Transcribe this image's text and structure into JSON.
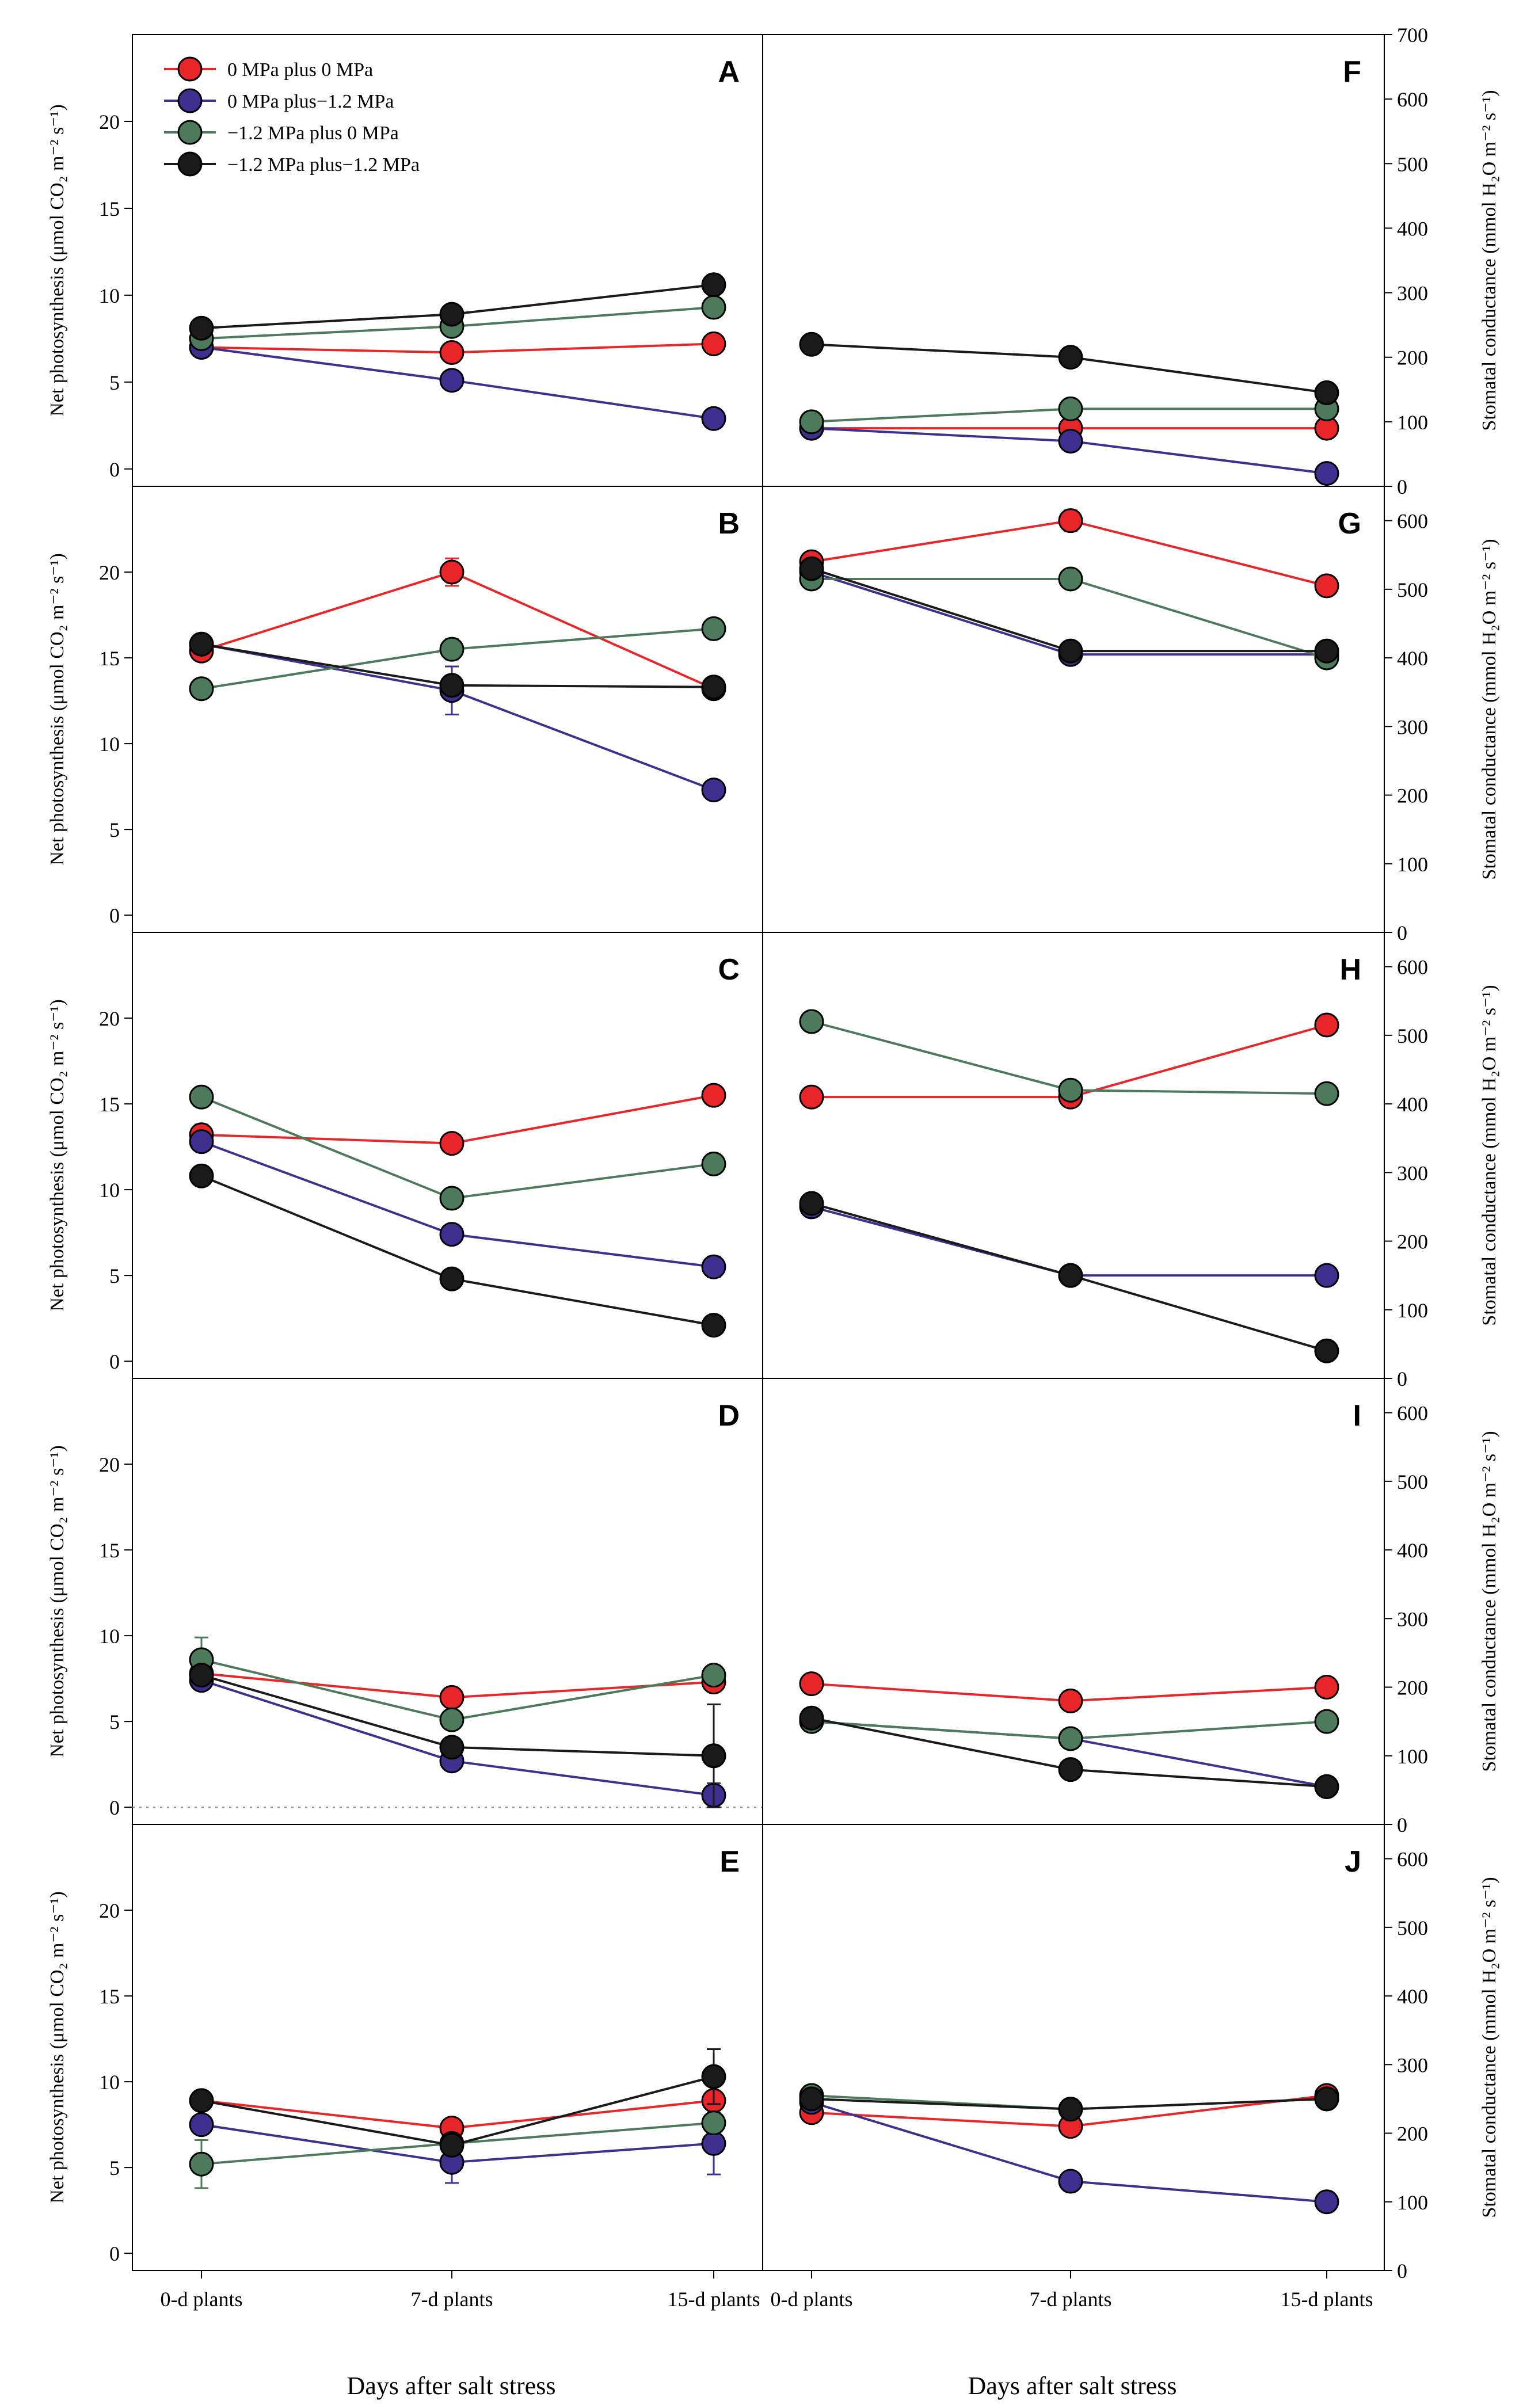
{
  "figure": {
    "x_axis_title": "Days after salt stress",
    "left_y_axis_title": "Net photosynthesis (μmol CO₂ m⁻² s⁻¹)",
    "right_y_axis_title": "Stomatal conductance (mmol H₂O m⁻² s⁻¹)",
    "x_tick_labels": [
      "0-d plants",
      "7-d plants",
      "15-d plants"
    ]
  },
  "legend": {
    "items": [
      {
        "label": "0 MPa plus 0 MPa",
        "color": "#e8262a"
      },
      {
        "label": "0 MPa plus−1.2 MPa",
        "color": "#3f2f8f"
      },
      {
        "label": "−1.2 MPa plus 0 MPa",
        "color": "#4c7a5a"
      },
      {
        "label": "−1.2 MPa plus−1.2  MPa",
        "color": "#1a1a1a"
      }
    ]
  },
  "chart_data": [
    {
      "panel": "A",
      "type": "line",
      "ylabel": "Net photosynthesis (μmol CO₂ m⁻² s⁻¹)",
      "ylim": [
        -1,
        25
      ],
      "yticks": [
        0,
        5,
        10,
        15,
        20
      ],
      "categories": [
        "0-d plants",
        "7-d plants",
        "15-d plants"
      ],
      "series": [
        {
          "name": "0 MPa plus 0 MPa",
          "values": [
            7.0,
            6.7,
            7.2
          ],
          "errors": [
            0.2,
            0.2,
            0.2
          ]
        },
        {
          "name": "0 MPa plus−1.2 MPa",
          "values": [
            7.0,
            5.1,
            2.9
          ],
          "errors": [
            0.2,
            0.2,
            0.2
          ]
        },
        {
          "name": "−1.2 MPa plus 0 MPa",
          "values": [
            7.5,
            8.2,
            9.3
          ],
          "errors": [
            0.2,
            0.2,
            0.3
          ]
        },
        {
          "name": "−1.2 MPa plus−1.2  MPa",
          "values": [
            8.1,
            8.9,
            10.6
          ],
          "errors": [
            0.2,
            0.2,
            0.3
          ]
        }
      ]
    },
    {
      "panel": "F",
      "type": "line",
      "ylabel": "Stomatal conductance (mmol H₂O m⁻² s⁻¹)",
      "ylim": [
        0,
        700
      ],
      "yticks": [
        0,
        100,
        200,
        300,
        400,
        500,
        600,
        700
      ],
      "categories": [
        "0-d plants",
        "7-d plants",
        "15-d plants"
      ],
      "series": [
        {
          "name": "0 MPa plus 0 MPa",
          "values": [
            90,
            90,
            90
          ],
          "errors": [
            4,
            4,
            4
          ]
        },
        {
          "name": "0 MPa plus−1.2 MPa",
          "values": [
            90,
            70,
            20
          ],
          "errors": [
            4,
            4,
            4
          ]
        },
        {
          "name": "−1.2 MPa plus 0 MPa",
          "values": [
            100,
            120,
            120
          ],
          "errors": [
            4,
            4,
            4
          ]
        },
        {
          "name": "−1.2 MPa plus−1.2  MPa",
          "values": [
            220,
            200,
            145
          ],
          "errors": [
            5,
            5,
            5
          ]
        }
      ]
    },
    {
      "panel": "B",
      "type": "line",
      "ylabel": "Net photosynthesis (μmol CO₂ m⁻² s⁻¹)",
      "ylim": [
        -1,
        25
      ],
      "yticks": [
        0,
        5,
        10,
        15,
        20
      ],
      "categories": [
        "0-d plants",
        "7-d plants",
        "15-d plants"
      ],
      "series": [
        {
          "name": "0 MPa plus 0 MPa",
          "values": [
            15.4,
            20.0,
            13.2
          ],
          "errors": [
            0.3,
            0.8,
            0.5
          ]
        },
        {
          "name": "0 MPa plus−1.2 MPa",
          "values": [
            15.8,
            13.1,
            7.3
          ],
          "errors": [
            0.3,
            1.4,
            0.3
          ]
        },
        {
          "name": "−1.2 MPa plus 0 MPa",
          "values": [
            13.2,
            15.5,
            16.7
          ],
          "errors": [
            0.3,
            0.6,
            0.3
          ]
        },
        {
          "name": "−1.2 MPa plus−1.2  MPa",
          "values": [
            15.8,
            13.4,
            13.3
          ],
          "errors": [
            0.3,
            0.3,
            0.4
          ]
        }
      ]
    },
    {
      "panel": "G",
      "type": "line",
      "ylabel": "Stomatal conductance (mmol H₂O m⁻² s⁻¹)",
      "ylim": [
        0,
        650
      ],
      "yticks": [
        0,
        100,
        200,
        300,
        400,
        500,
        600
      ],
      "categories": [
        "0-d plants",
        "7-d plants",
        "15-d plants"
      ],
      "series": [
        {
          "name": "0 MPa plus 0 MPa",
          "values": [
            540,
            600,
            505
          ],
          "errors": [
            8,
            15,
            8
          ]
        },
        {
          "name": "0 MPa plus−1.2 MPa",
          "values": [
            525,
            405,
            405
          ],
          "errors": [
            8,
            8,
            8
          ]
        },
        {
          "name": "−1.2 MPa plus 0 MPa",
          "values": [
            515,
            515,
            400
          ],
          "errors": [
            8,
            8,
            8
          ]
        },
        {
          "name": "−1.2 MPa plus−1.2  MPa",
          "values": [
            530,
            410,
            410
          ],
          "errors": [
            8,
            8,
            8
          ]
        }
      ]
    },
    {
      "panel": "C",
      "type": "line",
      "ylabel": "Net photosynthesis (μmol CO₂ m⁻² s⁻¹)",
      "ylim": [
        -1,
        25
      ],
      "yticks": [
        0,
        5,
        10,
        15,
        20
      ],
      "categories": [
        "0-d plants",
        "7-d plants",
        "15-d plants"
      ],
      "series": [
        {
          "name": "0 MPa plus 0 MPa",
          "values": [
            13.2,
            12.7,
            15.5
          ],
          "errors": [
            0.6,
            0.2,
            0.3
          ]
        },
        {
          "name": "0 MPa plus−1.2 MPa",
          "values": [
            12.8,
            7.4,
            5.5
          ],
          "errors": [
            0.5,
            0.3,
            0.6
          ]
        },
        {
          "name": "−1.2 MPa plus 0 MPa",
          "values": [
            15.4,
            9.5,
            11.5
          ],
          "errors": [
            0.3,
            0.3,
            0.3
          ]
        },
        {
          "name": "−1.2 MPa plus−1.2  MPa",
          "values": [
            10.8,
            4.8,
            2.1
          ],
          "errors": [
            0.4,
            0.2,
            0.2
          ]
        }
      ]
    },
    {
      "panel": "H",
      "type": "line",
      "ylabel": "Stomatal conductance (mmol H₂O m⁻² s⁻¹)",
      "ylim": [
        0,
        650
      ],
      "yticks": [
        0,
        100,
        200,
        300,
        400,
        500,
        600
      ],
      "categories": [
        "0-d plants",
        "7-d plants",
        "15-d plants"
      ],
      "series": [
        {
          "name": "0 MPa plus 0 MPa",
          "values": [
            410,
            410,
            515
          ],
          "errors": [
            8,
            8,
            8
          ]
        },
        {
          "name": "0 MPa plus−1.2 MPa",
          "values": [
            250,
            150,
            150
          ],
          "errors": [
            6,
            6,
            6
          ]
        },
        {
          "name": "−1.2 MPa plus 0 MPa",
          "values": [
            520,
            420,
            415
          ],
          "errors": [
            8,
            8,
            8
          ]
        },
        {
          "name": "−1.2 MPa plus−1.2  MPa",
          "values": [
            255,
            150,
            40
          ],
          "errors": [
            6,
            6,
            6
          ]
        }
      ]
    },
    {
      "panel": "D",
      "type": "line",
      "ylabel": "Net photosynthesis (μmol CO₂ m⁻² s⁻¹)",
      "ylim": [
        -1,
        25
      ],
      "yticks": [
        0,
        5,
        10,
        15,
        20
      ],
      "reference_line": 0,
      "categories": [
        "0-d plants",
        "7-d plants",
        "15-d plants"
      ],
      "series": [
        {
          "name": "0 MPa plus 0 MPa",
          "values": [
            7.8,
            6.4,
            7.3
          ],
          "errors": [
            0.2,
            0.2,
            0.3
          ]
        },
        {
          "name": "0 MPa plus−1.2 MPa",
          "values": [
            7.4,
            2.7,
            0.7
          ],
          "errors": [
            0.2,
            0.3,
            0.7
          ]
        },
        {
          "name": "−1.2 MPa plus 0 MPa",
          "values": [
            8.6,
            5.1,
            7.7
          ],
          "errors": [
            1.3,
            0.3,
            0.2
          ]
        },
        {
          "name": "−1.2 MPa plus−1.2  MPa",
          "values": [
            7.7,
            3.5,
            3.0
          ],
          "errors": [
            0.2,
            0.2,
            3.0
          ]
        }
      ]
    },
    {
      "panel": "I",
      "type": "line",
      "ylabel": "Stomatal conductance (mmol H₂O m⁻² s⁻¹)",
      "ylim": [
        0,
        650
      ],
      "yticks": [
        0,
        100,
        200,
        300,
        400,
        500,
        600
      ],
      "categories": [
        "0-d plants",
        "7-d plants",
        "15-d plants"
      ],
      "series": [
        {
          "name": "0 MPa plus 0 MPa",
          "values": [
            205,
            180,
            200
          ],
          "errors": [
            5,
            5,
            5
          ]
        },
        {
          "name": "0 MPa plus−1.2 MPa",
          "values": [
            150,
            125,
            55
          ],
          "errors": [
            5,
            5,
            5
          ]
        },
        {
          "name": "−1.2 MPa plus 0 MPa",
          "values": [
            150,
            125,
            150
          ],
          "errors": [
            5,
            5,
            5
          ]
        },
        {
          "name": "−1.2 MPa plus−1.2  MPa",
          "values": [
            155,
            80,
            55
          ],
          "errors": [
            5,
            5,
            5
          ]
        }
      ]
    },
    {
      "panel": "E",
      "type": "line",
      "ylabel": "Net photosynthesis (μmol CO₂ m⁻² s⁻¹)",
      "ylim": [
        -1,
        25
      ],
      "yticks": [
        0,
        5,
        10,
        15,
        20
      ],
      "categories": [
        "0-d plants",
        "7-d plants",
        "15-d plants"
      ],
      "series": [
        {
          "name": "0 MPa plus 0 MPa",
          "values": [
            8.9,
            7.3,
            8.9
          ],
          "errors": [
            0.3,
            0.3,
            0.3
          ]
        },
        {
          "name": "0 MPa plus−1.2 MPa",
          "values": [
            7.5,
            5.3,
            6.4
          ],
          "errors": [
            0.3,
            1.2,
            1.8
          ]
        },
        {
          "name": "−1.2 MPa plus 0 MPa",
          "values": [
            5.2,
            6.4,
            7.6
          ],
          "errors": [
            1.4,
            0.2,
            0.3
          ]
        },
        {
          "name": "−1.2 MPa plus−1.2  MPa",
          "values": [
            8.9,
            6.3,
            10.3
          ],
          "errors": [
            0.2,
            0.3,
            1.6
          ]
        }
      ]
    },
    {
      "panel": "J",
      "type": "line",
      "ylabel": "Stomatal conductance (mmol H₂O m⁻² s⁻¹)",
      "ylim": [
        0,
        650
      ],
      "yticks": [
        0,
        100,
        200,
        300,
        400,
        500,
        600
      ],
      "categories": [
        "0-d plants",
        "7-d plants",
        "15-d plants"
      ],
      "series": [
        {
          "name": "0 MPa plus 0 MPa",
          "values": [
            230,
            210,
            255
          ],
          "errors": [
            5,
            5,
            5
          ]
        },
        {
          "name": "0 MPa plus−1.2 MPa",
          "values": [
            245,
            130,
            100
          ],
          "errors": [
            5,
            10,
            5
          ]
        },
        {
          "name": "−1.2 MPa plus 0 MPa",
          "values": [
            255,
            235,
            250
          ],
          "errors": [
            5,
            5,
            5
          ]
        },
        {
          "name": "−1.2 MPa plus−1.2  MPa",
          "values": [
            250,
            235,
            250
          ],
          "errors": [
            5,
            5,
            5
          ]
        }
      ]
    }
  ]
}
